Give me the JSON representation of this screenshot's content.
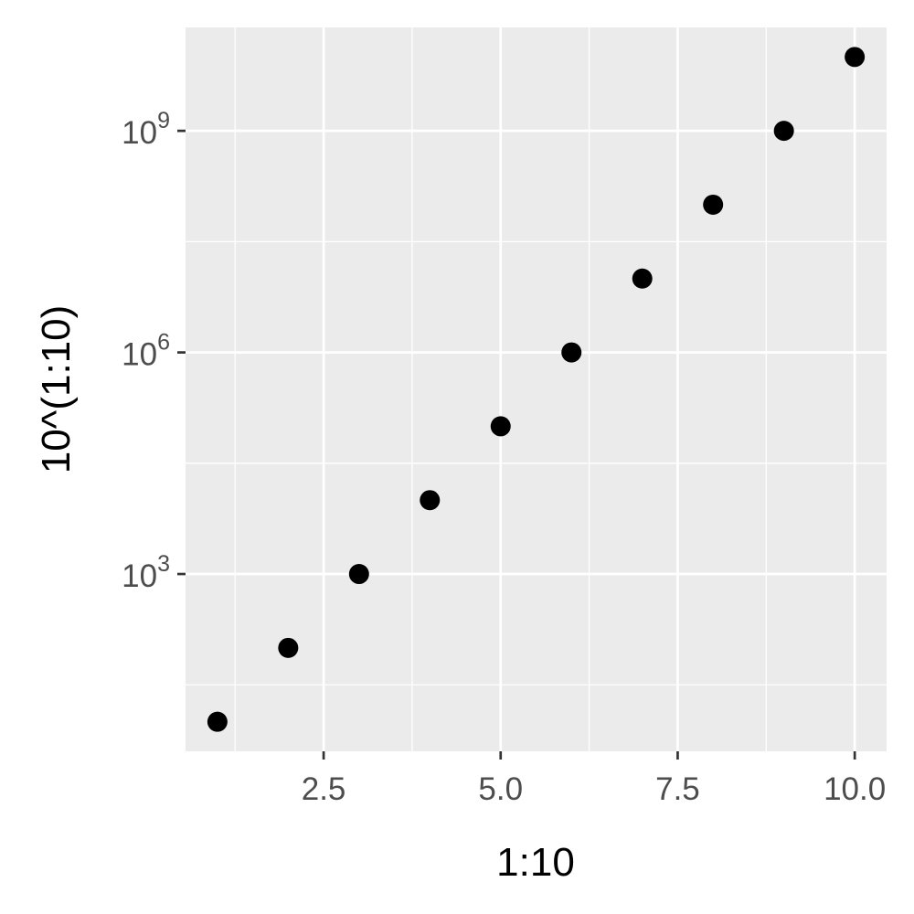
{
  "chart_data": {
    "type": "scatter",
    "xlabel": "1:10",
    "ylabel": "10^(1:10)",
    "x": [
      1,
      2,
      3,
      4,
      5,
      6,
      7,
      8,
      9,
      10
    ],
    "y": [
      10,
      100,
      1000,
      10000,
      100000,
      1000000,
      10000000,
      100000000,
      1000000000,
      10000000000
    ],
    "xlim": [
      0.55,
      10.45
    ],
    "ylim": [
      3.98,
      25118864315
    ],
    "y_scale": "log10",
    "x_ticks": [
      {
        "value": 2.5,
        "label": "2.5"
      },
      {
        "value": 5.0,
        "label": "5.0"
      },
      {
        "value": 7.5,
        "label": "7.5"
      },
      {
        "value": 10.0,
        "label": "10.0"
      }
    ],
    "x_minor_ticks": [
      1.25,
      3.75,
      6.25,
      8.75
    ],
    "y_ticks": [
      {
        "value": 1000,
        "base": "10",
        "exp": "3"
      },
      {
        "value": 1000000,
        "base": "10",
        "exp": "6"
      },
      {
        "value": 1000000000,
        "base": "10",
        "exp": "9"
      }
    ],
    "y_minor_ticks": [
      31.62,
      31622.78,
      31622776.6
    ],
    "grid": true,
    "panel_color": "#ebebeb",
    "grid_color": "#ffffff",
    "point_color": "#000000",
    "tick_label_color": "#4d4d4d",
    "axis_title_color": "#000000"
  }
}
